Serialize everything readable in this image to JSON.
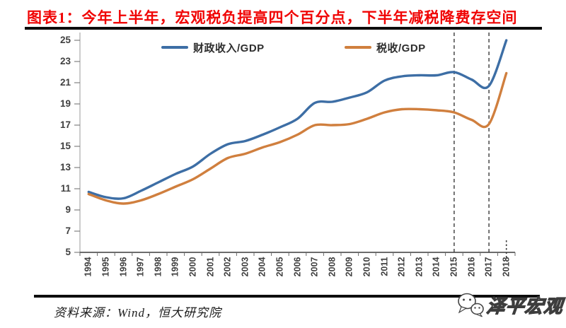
{
  "header": {
    "title": "图表1：今年上半年，宏观税负提高四个百分点，下半年减税降费存空间"
  },
  "chart_data": {
    "type": "line",
    "title": "图表1：今年上半年，宏观税负提高四个百分点，下半年减税降费存空间",
    "categories": [
      "1994",
      "1995",
      "1996",
      "1997",
      "1998",
      "1999",
      "2000",
      "2001",
      "2002",
      "2003",
      "2004",
      "2005",
      "2006",
      "2007",
      "2008",
      "2009",
      "2010",
      "2011",
      "2012",
      "2013",
      "2014",
      "2015",
      "2016",
      "2017",
      "2018"
    ],
    "series": [
      {
        "name": "财政收入/GDP",
        "color": "#3D6EA5",
        "values": [
          10.7,
          10.2,
          10.1,
          10.8,
          11.6,
          12.4,
          13.1,
          14.3,
          15.2,
          15.5,
          16.1,
          16.8,
          17.6,
          19.1,
          19.2,
          19.6,
          20.1,
          21.2,
          21.6,
          21.7,
          21.7,
          22.0,
          21.3,
          20.7,
          25.0
        ]
      },
      {
        "name": "税收/GDP",
        "color": "#D07F3E",
        "values": [
          10.5,
          9.9,
          9.6,
          9.9,
          10.5,
          11.2,
          11.9,
          12.9,
          13.9,
          14.3,
          14.9,
          15.4,
          16.1,
          17.0,
          17.0,
          17.1,
          17.6,
          18.2,
          18.5,
          18.5,
          18.4,
          18.2,
          17.5,
          17.1,
          21.9
        ]
      }
    ],
    "xlabel": "",
    "ylabel": "",
    "ylim": [
      5,
      25
    ],
    "ytick_step": 2,
    "grid": false,
    "legend_position": "top-inside",
    "annotations": {
      "dashed_vlines_at": [
        "2015",
        "2017"
      ],
      "dotted_axis_stub_at": "2018"
    }
  },
  "footer": {
    "source": "资料来源：Wind，恒大研究院",
    "logo": {
      "icon": "wechat-icon",
      "text": "泽平宏观"
    }
  }
}
